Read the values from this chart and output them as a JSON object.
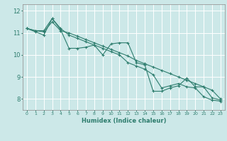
{
  "xlabel": "Humidex (Indice chaleur)",
  "bg_color": "#cce8e8",
  "grid_color": "#ffffff",
  "line_color": "#2e7d6e",
  "xlim": [
    -0.5,
    23.5
  ],
  "ylim": [
    7.5,
    12.3
  ],
  "yticks": [
    8,
    9,
    10,
    11,
    12
  ],
  "xticks": [
    0,
    1,
    2,
    3,
    4,
    5,
    6,
    7,
    8,
    9,
    10,
    11,
    12,
    13,
    14,
    15,
    16,
    17,
    18,
    19,
    20,
    21,
    22,
    23
  ],
  "series_jagged": [
    11.2,
    11.1,
    11.1,
    11.65,
    11.15,
    10.3,
    10.3,
    10.35,
    10.45,
    10.0,
    10.5,
    10.55,
    10.55,
    9.65,
    9.55,
    8.35,
    8.35,
    8.5,
    8.6,
    8.95,
    8.55,
    8.55,
    8.05,
    7.95
  ],
  "series_line1": [
    11.2,
    11.1,
    11.05,
    11.5,
    11.1,
    11.0,
    10.85,
    10.7,
    10.55,
    10.4,
    10.25,
    10.1,
    9.95,
    9.75,
    9.6,
    9.45,
    9.3,
    9.15,
    9.0,
    8.85,
    8.7,
    8.55,
    8.4,
    8.0
  ],
  "series_line2": [
    11.2,
    11.05,
    10.9,
    11.65,
    11.2,
    10.9,
    10.75,
    10.6,
    10.45,
    10.3,
    10.15,
    10.0,
    9.65,
    9.5,
    9.35,
    9.1,
    8.5,
    8.6,
    8.7,
    8.55,
    8.5,
    8.1,
    7.95,
    7.9
  ]
}
